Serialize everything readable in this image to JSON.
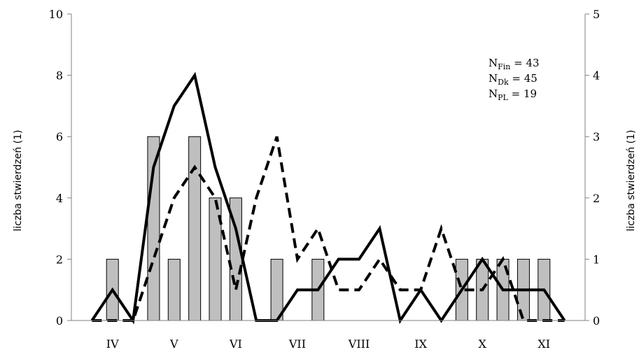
{
  "chart_data": {
    "type": "bar",
    "title": "",
    "ylabel_left": "liczba stwierdzeń (1)",
    "ylabel_right": "liczba stwierdzeń (1)",
    "x_month_labels": [
      "IV",
      "V",
      "VI",
      "VII",
      "VIII",
      "IX",
      "X",
      "XI"
    ],
    "y_left": {
      "range": [
        0,
        10
      ],
      "ticks": [
        "0",
        "2",
        "4",
        "6",
        "8",
        "10"
      ]
    },
    "y_right": {
      "range": [
        0,
        5
      ],
      "ticks": [
        "0",
        "1",
        "2",
        "3",
        "4",
        "5"
      ]
    },
    "grid": false,
    "bars": {
      "axis": "left",
      "values": [
        0,
        2,
        0,
        6,
        2,
        6,
        4,
        4,
        0,
        2,
        0,
        2,
        0,
        0,
        0,
        0,
        0,
        0,
        2,
        2,
        2,
        2,
        2,
        0
      ]
    },
    "lines": [
      {
        "style": "solid",
        "axis": "left",
        "values": [
          0,
          1,
          0,
          5,
          7,
          8,
          5,
          3,
          0,
          0,
          1,
          1,
          2,
          2,
          3,
          0,
          1,
          0,
          1,
          2,
          1,
          1,
          1,
          0
        ]
      },
      {
        "style": "dashed",
        "axis": "right",
        "values": [
          0,
          0,
          0,
          1,
          2,
          2.5,
          2,
          0.5,
          2,
          3,
          1,
          1.5,
          0.5,
          0.5,
          1,
          0.5,
          0.5,
          1.5,
          0.5,
          0.5,
          1,
          0,
          0,
          0
        ]
      }
    ],
    "annotations": [
      {
        "base": "N",
        "sub": "Fin",
        "text": "= 43"
      },
      {
        "base": "N",
        "sub": "Dk",
        "text": "= 45"
      },
      {
        "base": "N",
        "sub": "PL",
        "text": "= 19"
      }
    ],
    "legend_placement": "top-right"
  },
  "colors": {
    "bar_fill": "#bfbfbf",
    "bar_stroke": "#000000",
    "line": "#000000",
    "axis": "#808080"
  }
}
